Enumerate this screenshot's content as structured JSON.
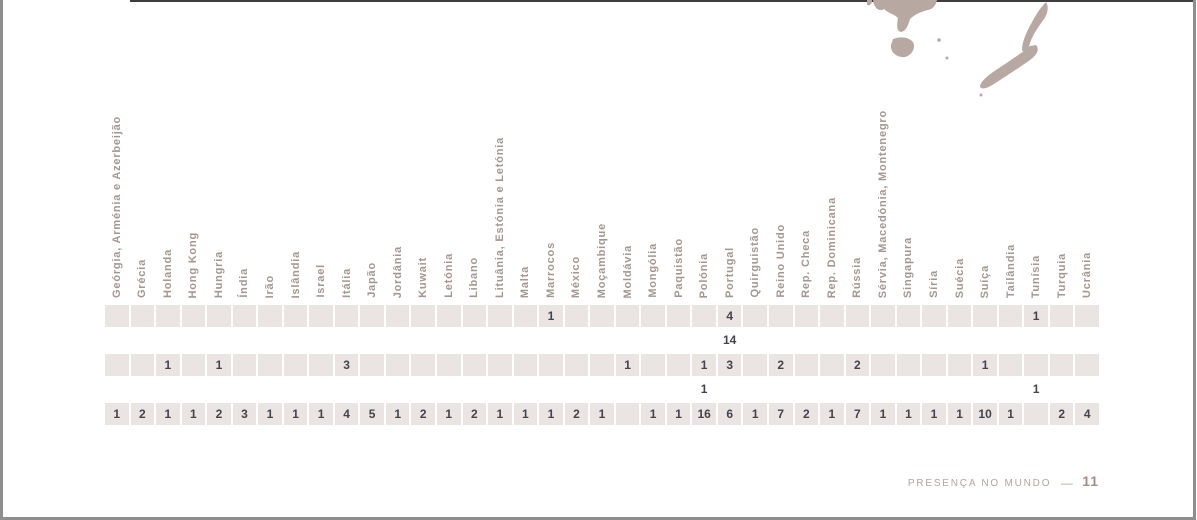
{
  "colors": {
    "cell_bg": "#eae4e2",
    "value_text": "#44444e",
    "header_text": "#a5968f",
    "footer_text": "#b3a49d",
    "page_number_text": "#a28f88",
    "map_fill": "#b7a8a2",
    "border_grey": "#8e8e8e",
    "border_dark": "#3d3d3d"
  },
  "map": {
    "name": "world-map-fragment-oceania",
    "regions": [
      "australia-south-coast",
      "tasmania",
      "bass-strait-islands",
      "new-zealand-north-island",
      "new-zealand-south-island",
      "stewart-island"
    ]
  },
  "table": {
    "columns": [
      "Geórgia, Arménia e Azerbeijão",
      "Grécia",
      "Holanda",
      "Hong Kong",
      "Hungria",
      "Índia",
      "Irão",
      "Islândia",
      "Israel",
      "Itália",
      "Japão",
      "Jordânia",
      "Kuwait",
      "Letónia",
      "Libano",
      "Lituânia, Estónia e Letónia",
      "Malta",
      "Marrocos",
      "México",
      "Moçambique",
      "Moldávia",
      "Mongólia",
      "Paquistão",
      "Polónia",
      "Portugal",
      "Quirguistão",
      "Reino Unido",
      "Rep. Checa",
      "Rep. Dominicana",
      "Rússia",
      "Sérvia, Macedónia, Montenegro",
      "Singapura",
      "Síria",
      "Suécia",
      "Suíça",
      "Tailândia",
      "Tunísia",
      "Turquia",
      "Ucrânia"
    ],
    "rows": [
      {
        "type": "cells",
        "values": [
          "",
          "",
          "",
          "",
          "",
          "",
          "",
          "",
          "",
          "",
          "",
          "",
          "",
          "",
          "",
          "",
          "",
          "1",
          "",
          "",
          "",
          "",
          "",
          "",
          "4",
          "",
          "",
          "",
          "",
          "",
          "",
          "",
          "",
          "",
          "",
          "",
          "1",
          "",
          ""
        ]
      },
      {
        "type": "plain",
        "values": [
          "",
          "",
          "",
          "",
          "",
          "",
          "",
          "",
          "",
          "",
          "",
          "",
          "",
          "",
          "",
          "",
          "",
          "",
          "",
          "",
          "",
          "",
          "",
          "",
          "14",
          "",
          "",
          "",
          "",
          "",
          "",
          "",
          "",
          "",
          "",
          "",
          "",
          "",
          ""
        ]
      },
      {
        "type": "cells",
        "values": [
          "",
          "",
          "1",
          "",
          "1",
          "",
          "",
          "",
          "",
          "3",
          "",
          "",
          "",
          "",
          "",
          "",
          "",
          "",
          "",
          "",
          "1",
          "",
          "",
          "1",
          "3",
          "",
          "2",
          "",
          "",
          "2",
          "",
          "",
          "",
          "",
          "1",
          "",
          "",
          "",
          ""
        ]
      },
      {
        "type": "plain",
        "values": [
          "",
          "",
          "",
          "",
          "",
          "",
          "",
          "",
          "",
          "",
          "",
          "",
          "",
          "",
          "",
          "",
          "",
          "",
          "",
          "",
          "",
          "",
          "",
          "1",
          "",
          "",
          "",
          "",
          "",
          "",
          "",
          "",
          "",
          "",
          "",
          "",
          "1",
          "",
          ""
        ]
      },
      {
        "type": "cells",
        "values": [
          "1",
          "2",
          "1",
          "1",
          "2",
          "3",
          "1",
          "1",
          "1",
          "4",
          "5",
          "1",
          "2",
          "1",
          "2",
          "1",
          "1",
          "1",
          "2",
          "1",
          "",
          "1",
          "1",
          "16",
          "6",
          "1",
          "7",
          "2",
          "1",
          "7",
          "1",
          "1",
          "1",
          "1",
          "10",
          "1",
          "",
          "2",
          "4"
        ]
      }
    ]
  },
  "footer": {
    "label": "PRESENÇA NO MUNDO",
    "separator": "—",
    "page_number": "11"
  }
}
